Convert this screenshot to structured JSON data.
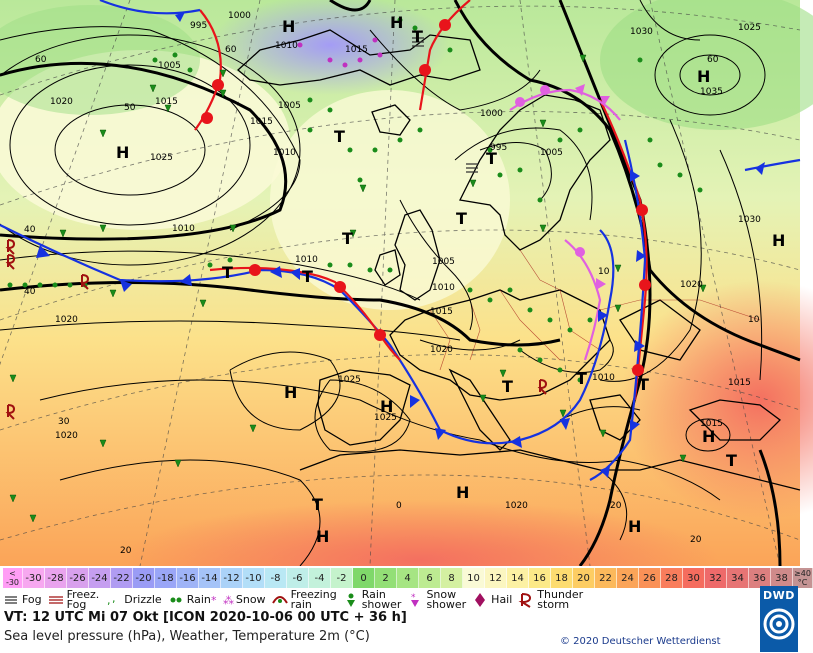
{
  "map": {
    "centers": [
      {
        "type": "H",
        "name": "high-center-atlantic"
      },
      {
        "type": "H",
        "name": "high-center-iceland"
      },
      {
        "type": "H",
        "name": "high-center-scandinavia-north"
      },
      {
        "type": "H",
        "name": "high-center-russia"
      },
      {
        "type": "H",
        "name": "high-center-east"
      },
      {
        "type": "H",
        "name": "high-center-azores"
      },
      {
        "type": "H",
        "name": "high-center-iberia"
      },
      {
        "type": "H",
        "name": "high-center-africa"
      },
      {
        "type": "H",
        "name": "high-center-morocco"
      },
      {
        "type": "H",
        "name": "high-center-egypt"
      },
      {
        "type": "H",
        "name": "high-center-eastmed"
      },
      {
        "type": "T",
        "name": "low-center-norway-sea"
      },
      {
        "type": "T",
        "name": "low-center-north-sea"
      },
      {
        "type": "T",
        "name": "low-center-uk"
      },
      {
        "type": "T",
        "name": "low-center-atlantic-1"
      },
      {
        "type": "T",
        "name": "low-center-atlantic-2"
      },
      {
        "type": "T",
        "name": "low-center-italy"
      },
      {
        "type": "T",
        "name": "low-center-balkan"
      },
      {
        "type": "T",
        "name": "low-center-aegean"
      },
      {
        "type": "T",
        "name": "low-center-east-med"
      },
      {
        "type": "T",
        "name": "low-center-africa"
      },
      {
        "type": "T",
        "name": "low-center-finland"
      },
      {
        "type": "T",
        "name": "low-center-arctic"
      }
    ],
    "isobar_labels": [
      "995",
      "1000",
      "1010",
      "1015",
      "1015",
      "1005",
      "1020",
      "1025",
      "1015",
      "1010",
      "1005",
      "1000",
      "995",
      "1005",
      "1030",
      "1025",
      "1035",
      "1030",
      "1020",
      "1010",
      "1005",
      "1015",
      "1010",
      "1020",
      "1025",
      "1025",
      "1020",
      "1020",
      "1015",
      "1010",
      "1015",
      "1020",
      "1010"
    ],
    "lat_labels": [
      "60",
      "60",
      "50",
      "40",
      "40",
      "30",
      "20",
      "20",
      "0",
      "10",
      "60",
      "10",
      "20"
    ]
  },
  "legend": {
    "temperature_scale": [
      {
        "label": "<\n-30",
        "color": "#ff9ef5"
      },
      {
        "label": "-30",
        "color": "#f7a8f0"
      },
      {
        "label": "-28",
        "color": "#e9a3ee"
      },
      {
        "label": "-26",
        "color": "#d8a0ed"
      },
      {
        "label": "-24",
        "color": "#c59ef0"
      },
      {
        "label": "-22",
        "color": "#b09cf2"
      },
      {
        "label": "-20",
        "color": "#9a9cf5"
      },
      {
        "label": "-18",
        "color": "#9aa6f7"
      },
      {
        "label": "-16",
        "color": "#9fb4f7"
      },
      {
        "label": "-14",
        "color": "#a5c3f8"
      },
      {
        "label": "-12",
        "color": "#abd2f8"
      },
      {
        "label": "-10",
        "color": "#b2def8"
      },
      {
        "label": "-8",
        "color": "#b9e8f4"
      },
      {
        "label": "-6",
        "color": "#bfeee8"
      },
      {
        "label": "-4",
        "color": "#c3f1db"
      },
      {
        "label": "-2",
        "color": "#c5f3cc"
      },
      {
        "label": "0",
        "color": "#7fd86a"
      },
      {
        "label": "2",
        "color": "#93df76"
      },
      {
        "label": "4",
        "color": "#a6e583"
      },
      {
        "label": "6",
        "color": "#bdeb92"
      },
      {
        "label": "8",
        "color": "#d4f0a1"
      },
      {
        "label": "10",
        "color": "#fafad6"
      },
      {
        "label": "12",
        "color": "#fbf6c0"
      },
      {
        "label": "14",
        "color": "#fcf1a3"
      },
      {
        "label": "16",
        "color": "#fce988"
      },
      {
        "label": "18",
        "color": "#fddc70"
      },
      {
        "label": "20",
        "color": "#fdcd63"
      },
      {
        "label": "22",
        "color": "#fcb95b"
      },
      {
        "label": "24",
        "color": "#fba458"
      },
      {
        "label": "26",
        "color": "#fa9157"
      },
      {
        "label": "28",
        "color": "#f97d5c"
      },
      {
        "label": "30",
        "color": "#f56c5e"
      },
      {
        "label": "32",
        "color": "#ee6a6a"
      },
      {
        "label": "34",
        "color": "#e77474"
      },
      {
        "label": "36",
        "color": "#dc7f7f"
      },
      {
        "label": "38",
        "color": "#cf8a8a"
      },
      {
        "label": "≥40\n°C",
        "color": "#c49393"
      }
    ],
    "weather": [
      {
        "icon": "fog-icon",
        "label": "Fog"
      },
      {
        "icon": "freezing-fog-icon",
        "label": "Freez.\nFog"
      },
      {
        "icon": "drizzle-icon",
        "label": "Drizzle"
      },
      {
        "icon": "rain-icon",
        "label": "Rain"
      },
      {
        "icon": "snow-icon",
        "label": "Snow"
      },
      {
        "icon": "freezing-rain-icon",
        "label": "Freezing\nrain"
      },
      {
        "icon": "rain-shower-icon",
        "label": "Rain\nshower"
      },
      {
        "icon": "snow-shower-icon",
        "label": "Snow\nshower"
      },
      {
        "icon": "hail-icon",
        "label": "Hail"
      },
      {
        "icon": "thunderstorm-icon",
        "label": "Thunder\nstorm"
      }
    ],
    "valid_time": "VT: 12 UTC Mi  07 Okt [ICON 2020-10-06  00 UTC + 36 h]",
    "description": "Sea level pressure (hPa), Weather, Temperature 2m (°C)",
    "copyright": "© 2020 Deutscher Wetterdienst",
    "logo_text": "DWD",
    "colors": {
      "warm_front": "#e8141b",
      "cold_front": "#1632e0",
      "occlusion": "#e060e0"
    }
  }
}
